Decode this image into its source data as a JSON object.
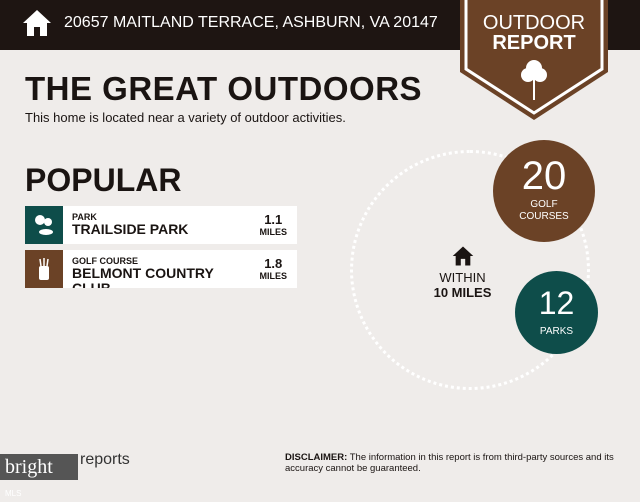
{
  "header": {
    "address": "20657 MAITLAND TERRACE, ASHBURN, VA 20147",
    "icon": "house-icon"
  },
  "badge": {
    "line1": "OUTDOOR",
    "line2": "REPORT",
    "icon": "tree-icon",
    "color": "#6b4226"
  },
  "title": "THE GREAT OUTDOORS",
  "subtitle": "This home is located near a variety of outdoor activities.",
  "popular": {
    "heading": "POPULAR",
    "items": [
      {
        "category": "PARK",
        "name": "TRAILSIDE PARK",
        "distance": "1.1",
        "unit": "MILES",
        "icon": "park-icon",
        "color": "#0e4d4a"
      },
      {
        "category": "GOLF COURSE",
        "name": "BELMONT COUNTRY CLUB",
        "distance": "1.8",
        "unit": "MILES",
        "icon": "golf-bag-icon",
        "color": "#6b4226"
      }
    ]
  },
  "radius": {
    "line1": "WITHIN",
    "line2": "10 MILES"
  },
  "stats": {
    "golf": {
      "count": "20",
      "label1": "GOLF",
      "label2": "COURSES"
    },
    "parks": {
      "count": "12",
      "label": "PARKS"
    }
  },
  "footer": {
    "brand": "bright",
    "brand_suffix": "MLS",
    "reports": "reports",
    "disclaimer_label": "DISCLAIMER:",
    "disclaimer": " The information in this report is from third-party sources and its accuracy cannot be guaranteed."
  }
}
